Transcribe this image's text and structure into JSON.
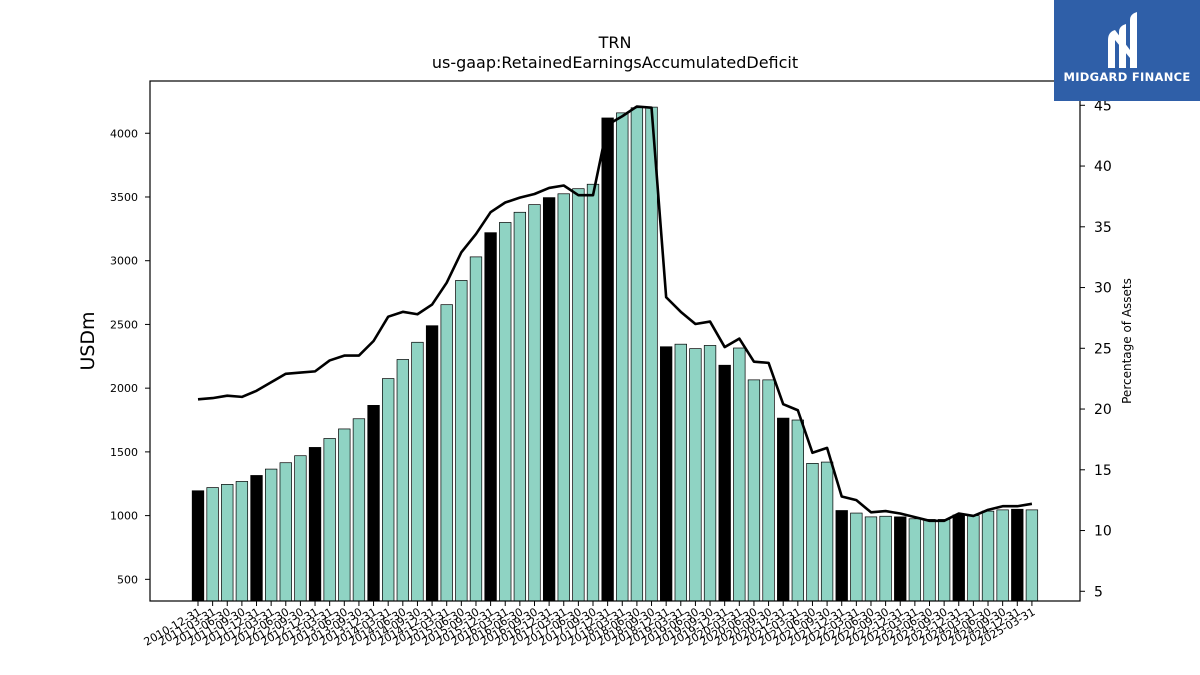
{
  "chart_data": {
    "type": "bar",
    "title": "TRN",
    "subtitle": "us-gaap:RetainedEarningsAccumulatedDeficit",
    "ylabel": "USDm",
    "y2label": "Percentage of Assets",
    "ylim": [
      330,
      4410
    ],
    "y2lim": [
      4.2,
      47.0
    ],
    "yticks": [
      500,
      1000,
      1500,
      2000,
      2500,
      3000,
      3500,
      4000
    ],
    "y2ticks": [
      5,
      10,
      15,
      20,
      25,
      30,
      35,
      40,
      45
    ],
    "categories": [
      "2010-12-31",
      "2011-03-31",
      "2011-06-30",
      "2011-09-30",
      "2011-12-31",
      "2012-03-31",
      "2012-06-30",
      "2012-09-30",
      "2012-12-31",
      "2013-03-31",
      "2013-06-30",
      "2013-09-30",
      "2013-12-31",
      "2014-03-31",
      "2014-06-30",
      "2014-09-30",
      "2014-12-31",
      "2015-03-31",
      "2015-06-30",
      "2015-09-30",
      "2015-12-31",
      "2016-03-31",
      "2016-06-30",
      "2016-09-30",
      "2016-12-31",
      "2017-03-31",
      "2017-06-30",
      "2017-09-30",
      "2017-12-31",
      "2018-03-31",
      "2018-06-30",
      "2018-09-30",
      "2018-12-31",
      "2019-03-31",
      "2019-06-30",
      "2019-09-30",
      "2019-12-31",
      "2020-03-31",
      "2020-06-30",
      "2020-09-30",
      "2020-12-31",
      "2021-03-31",
      "2021-06-30",
      "2021-09-30",
      "2021-12-31",
      "2022-03-31",
      "2022-06-30",
      "2022-09-30",
      "2022-12-31",
      "2023-03-31",
      "2023-06-30",
      "2023-09-30",
      "2023-12-31",
      "2024-03-31",
      "2024-06-30",
      "2024-09-30",
      "2024-12-31",
      "2025-03-31"
    ],
    "series": [
      {
        "kind": "bar",
        "values": [
          1195,
          1220,
          1245,
          1268,
          1315,
          1365,
          1415,
          1470,
          1535,
          1605,
          1680,
          1760,
          1865,
          2075,
          2225,
          2360,
          2490,
          2655,
          2845,
          3030,
          3220,
          3300,
          3380,
          3440,
          3495,
          3525,
          3565,
          3600,
          4120,
          4160,
          4200,
          4205,
          2325,
          2345,
          2310,
          2335,
          2180,
          2315,
          2065,
          2065,
          1765,
          1750,
          1410,
          1420,
          1040,
          1020,
          990,
          995,
          990,
          975,
          970,
          970,
          1005,
          1000,
          1035,
          1045,
          1050,
          1045
        ],
        "highlight_color": "#000000",
        "color": "#8fd3c3"
      },
      {
        "kind": "line",
        "axis": "right",
        "values": [
          20.8,
          20.9,
          21.1,
          21.0,
          21.5,
          22.2,
          22.9,
          23.0,
          23.1,
          24.0,
          24.4,
          24.4,
          25.6,
          27.6,
          28.0,
          27.8,
          28.6,
          30.4,
          32.9,
          34.4,
          36.2,
          37.0,
          37.4,
          37.7,
          38.2,
          38.4,
          37.6,
          37.6,
          43.4,
          44.1,
          44.9,
          44.8,
          29.2,
          28.0,
          27.0,
          27.2,
          25.1,
          25.8,
          23.9,
          23.8,
          20.4,
          19.9,
          16.4,
          16.8,
          12.8,
          12.5,
          11.5,
          11.6,
          11.4,
          11.1,
          10.8,
          10.8,
          11.4,
          11.2,
          11.7,
          12.0,
          12.0,
          12.2
        ],
        "color": "#000000"
      }
    ]
  },
  "logo": {
    "text": "MIDGARD FINANCE"
  }
}
